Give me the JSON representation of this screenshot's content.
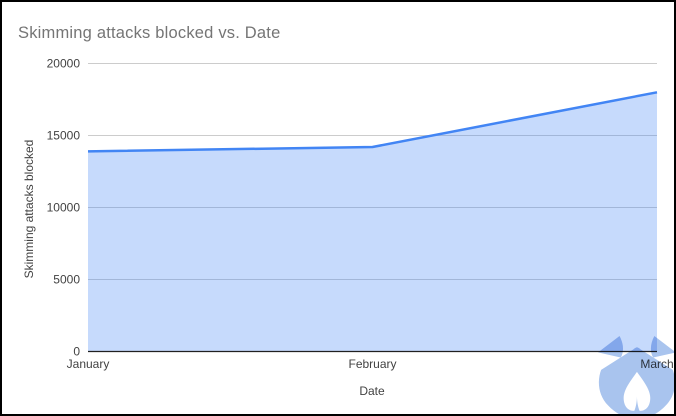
{
  "title": "Skimming attacks blocked vs. Date",
  "colors": {
    "background": "#ffffff",
    "border": "#000000",
    "title_text": "#757575",
    "line": "#4285f4",
    "area_fill": "rgba(66,133,244,0.3)",
    "gridline": "#cccccc",
    "axis_line": "#212121",
    "tick_label": "#424242",
    "axis_title_text": "#424242",
    "watermark": "#a9c4ee"
  },
  "watermark_icon": "malwarebytes-m-logo",
  "chart_data": {
    "type": "area",
    "title": "Skimming attacks blocked vs. Date",
    "categories": [
      "January",
      "February",
      "March"
    ],
    "series": [
      {
        "name": "Skimming attacks blocked",
        "values": [
          13900,
          14200,
          18000
        ]
      }
    ],
    "xlabel": "Date",
    "ylabel": "Skimming attacks blocked",
    "ylim": [
      0,
      20000
    ],
    "yticks": [
      0,
      5000,
      10000,
      15000,
      20000
    ],
    "grid": true,
    "legend": "none"
  }
}
